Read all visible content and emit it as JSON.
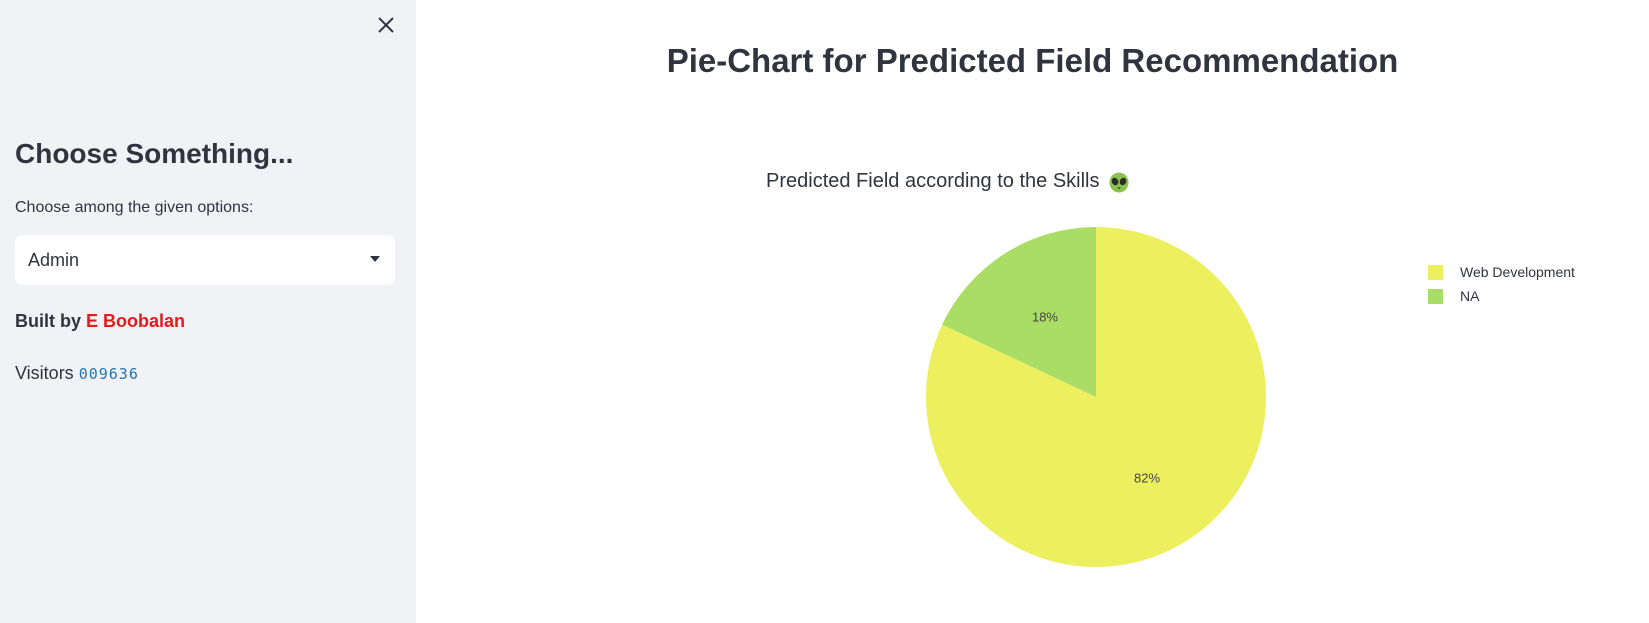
{
  "sidebar": {
    "heading": "Choose Something...",
    "select_label": "Choose among the given options:",
    "select_value": "Admin",
    "built_by_prefix": "Built by ",
    "built_by_author": "E Boobalan",
    "visitors_label": "Visitors ",
    "visitors_count": "009636",
    "icons": {
      "close": "close-icon",
      "caret": "chevron-down-icon",
      "emoji": "alien-icon"
    }
  },
  "main": {
    "page_title": "Pie-Chart for Predicted Field Recommendation"
  },
  "chart_data": {
    "type": "pie",
    "title": "Predicted Field according to the Skills",
    "categories": [
      "Web Development",
      "NA"
    ],
    "values": [
      82,
      18
    ],
    "labels": [
      "82%",
      "18%"
    ],
    "colors": [
      "#ecef5e",
      "#aadd66"
    ],
    "legend_position": "top-right",
    "start": "12 o'clock",
    "direction": "clockwise"
  }
}
